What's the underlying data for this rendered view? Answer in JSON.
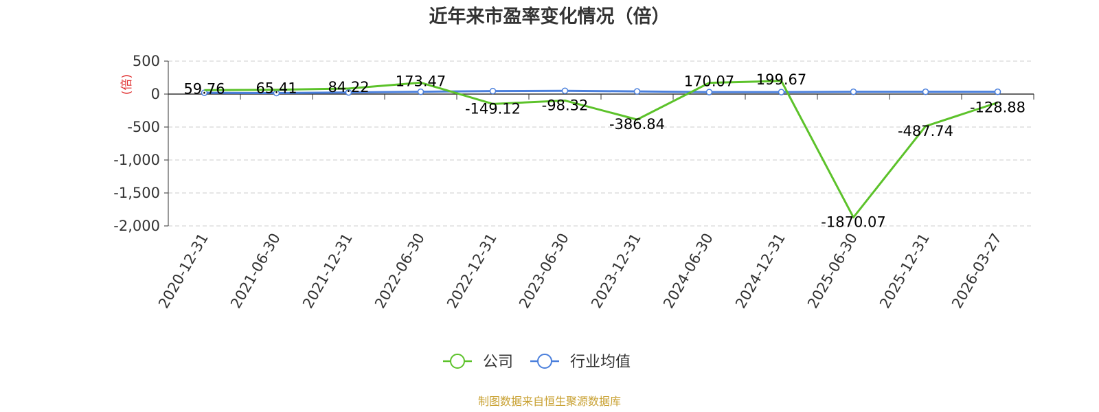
{
  "chart_data": {
    "type": "line",
    "title": "近年来市盈率变化情况（倍）",
    "ylabel": "(倍)",
    "xlabel": "",
    "categories": [
      "2020-12-31",
      "2021-06-30",
      "2021-12-31",
      "2022-06-30",
      "2022-12-31",
      "2023-06-30",
      "2023-12-31",
      "2024-06-30",
      "2024-12-31",
      "2025-06-30",
      "2025-12-31",
      "2026-03-27"
    ],
    "ylim": [
      -2000,
      500
    ],
    "yticks": [
      500,
      0,
      -500,
      -1000,
      -1500,
      -2000
    ],
    "ytick_labels": [
      "500",
      "0",
      "-500",
      "-1,000",
      "-1,500",
      "-2,000"
    ],
    "grid": true,
    "legend_position": "bottom-center",
    "series": [
      {
        "name": "公司",
        "color": "#5cc22a",
        "values": [
          59.76,
          65.41,
          84.22,
          173.47,
          -149.12,
          -98.32,
          -386.84,
          170.07,
          199.67,
          -1870.07,
          -487.74,
          -128.88
        ],
        "labels": [
          "59.76",
          "65.41",
          "84.22",
          "173.47",
          "-149.12",
          "-98.32",
          "-386.84",
          "170.07",
          "199.67",
          "-1870.07",
          "-487.74",
          "-128.88"
        ]
      },
      {
        "name": "行业均值",
        "color": "#4a7fdc",
        "values": [
          20,
          15,
          25,
          35,
          45,
          50,
          40,
          30,
          30,
          35,
          35,
          35
        ]
      }
    ]
  },
  "colors": {
    "ylabel": "#e03030",
    "source": "#c8a030",
    "grid": "#cccccc",
    "axis": "#333333"
  },
  "source_text": "制图数据来自恒生聚源数据库"
}
